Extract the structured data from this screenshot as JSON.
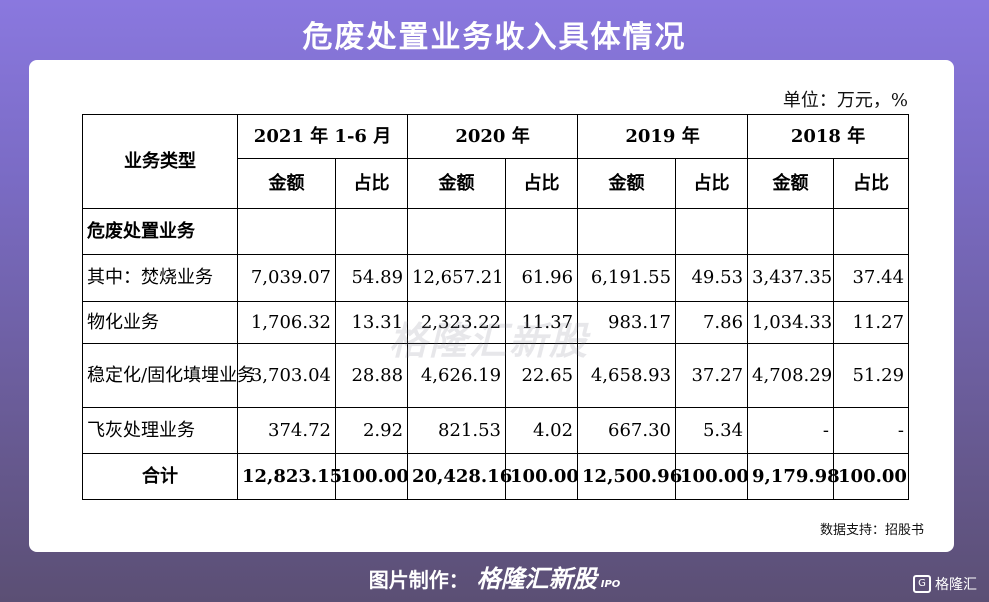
{
  "title": "危废处置业务收入具体情况",
  "unit": "单位：万元，%",
  "table": {
    "corner_header": "业务类型",
    "periods": [
      "2021 年 1-6 月",
      "2020 年",
      "2019 年",
      "2018 年"
    ],
    "sub_headers": [
      "金额",
      "占比"
    ],
    "section_label": "危废处置业务",
    "rows": [
      {
        "name": "其中：焚烧业务",
        "values": [
          "7,039.07",
          "54.89",
          "12,657.21",
          "61.96",
          "6,191.55",
          "49.53",
          "3,437.35",
          "37.44"
        ]
      },
      {
        "name": "物化业务",
        "values": [
          "1,706.32",
          "13.31",
          "2,323.22",
          "11.37",
          "983.17",
          "7.86",
          "1,034.33",
          "11.27"
        ]
      },
      {
        "name": "稳定化/固化填埋业务",
        "values": [
          "3,703.04",
          "28.88",
          "4,626.19",
          "22.65",
          "4,658.93",
          "37.27",
          "4,708.29",
          "51.29"
        ]
      },
      {
        "name": "飞灰处理业务",
        "values": [
          "374.72",
          "2.92",
          "821.53",
          "4.02",
          "667.30",
          "5.34",
          "-",
          "-"
        ]
      }
    ],
    "total": {
      "name": "合计",
      "values": [
        "12,823.15",
        "100.00",
        "20,428.16",
        "100.00",
        "12,500.96",
        "100.00",
        "9,179.98",
        "100.00"
      ]
    }
  },
  "watermark": "格隆汇新股",
  "source": "数据支持：招股书",
  "footer": {
    "label": "图片制作：",
    "brand": "格隆汇新股",
    "ipo": "IPO"
  },
  "corner_logo": "格隆汇",
  "colors": {
    "background_top": "#8a78df",
    "background_bottom": "#5b4f74",
    "card": "#ffffff"
  }
}
